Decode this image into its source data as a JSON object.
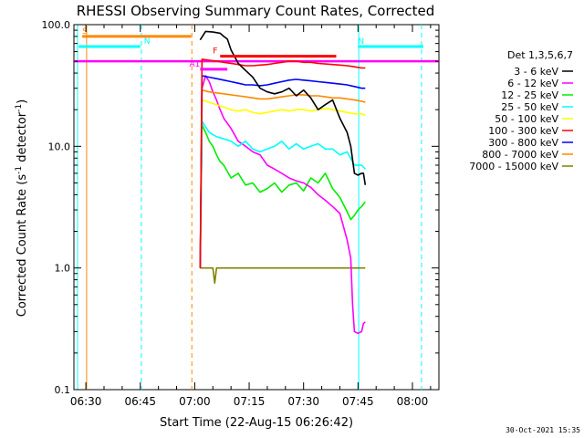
{
  "chart_data": {
    "type": "line",
    "title": "RHESSI Observing Summary Count Rates, Corrected",
    "xlabel": "Start Time (22-Aug-15 06:26:42)",
    "ylabel_main": "Corrected Count Rate (s",
    "ylabel_sup1": "-1",
    "ylabel_mid": " detector",
    "ylabel_sup2": "-1",
    "ylabel_end": ")",
    "yscale": "log",
    "ylim": [
      0.1,
      100
    ],
    "xlim": [
      "06:26",
      "08:07"
    ],
    "y_ticks": [
      {
        "value": 0.1,
        "label": "0.1"
      },
      {
        "value": 1,
        "label": "1.0"
      },
      {
        "value": 10,
        "label": "10.0"
      },
      {
        "value": 100,
        "label": "100.0"
      }
    ],
    "x_ticks": [
      {
        "minute": 390,
        "label": "06:30"
      },
      {
        "minute": 405,
        "label": "06:45"
      },
      {
        "minute": 420,
        "label": "07:00"
      },
      {
        "minute": 435,
        "label": "07:15"
      },
      {
        "minute": 450,
        "label": "07:30"
      },
      {
        "minute": 465,
        "label": "07:45"
      },
      {
        "minute": 480,
        "label": "08:00"
      }
    ],
    "legend_title": "Det 1,3,5,6,7",
    "legend_position": "right",
    "series": [
      {
        "name": "3 - 6 keV",
        "color": "#000000",
        "x": [
          421.5,
          423,
          425,
          427,
          428,
          429,
          430,
          432,
          434,
          436,
          438,
          440,
          442,
          444,
          446,
          448,
          450,
          452,
          454,
          456,
          458,
          460,
          462,
          463,
          464,
          465,
          466,
          466.5,
          467
        ],
        "y": [
          75,
          88,
          87,
          85,
          80,
          76,
          62,
          48,
          42,
          37,
          30,
          28,
          27,
          28,
          30,
          26,
          29,
          25,
          20,
          22,
          24,
          17,
          13,
          10,
          6,
          5.8,
          6,
          6,
          4.8
        ]
      },
      {
        "name": "6 - 12 keV",
        "color": "#ff00ff",
        "x": [
          421.5,
          422,
          423,
          424,
          425,
          426,
          427,
          428,
          430,
          432,
          434,
          436,
          438,
          440,
          442,
          444,
          446,
          448,
          450,
          452,
          454,
          456,
          458,
          460,
          462,
          463,
          463.5,
          464,
          465,
          466,
          466.5,
          467
        ],
        "y": [
          1.0,
          30,
          38,
          34,
          28,
          24,
          20,
          17,
          14,
          11,
          10,
          9,
          8.5,
          7,
          6.5,
          6,
          5.5,
          5.2,
          5,
          4.6,
          4,
          3.6,
          3.2,
          2.8,
          1.7,
          1.2,
          0.5,
          0.3,
          0.29,
          0.3,
          0.35,
          0.36
        ]
      },
      {
        "name": "12 - 25 keV",
        "color": "#00ee00",
        "x": [
          421.5,
          422,
          423,
          424,
          425,
          426,
          427,
          428,
          430,
          432,
          434,
          436,
          438,
          440,
          442,
          444,
          446,
          448,
          450,
          452,
          454,
          456,
          458,
          460,
          462,
          463,
          464,
          465,
          466,
          467
        ],
        "y": [
          1.0,
          15,
          13,
          11,
          10,
          8.5,
          7.5,
          7,
          5.5,
          6,
          4.8,
          5,
          4.2,
          4.5,
          5,
          4.2,
          4.8,
          5,
          4.3,
          5.5,
          5,
          6,
          4.5,
          3.8,
          2.9,
          2.5,
          2.7,
          3.0,
          3.2,
          3.5
        ]
      },
      {
        "name": "25 - 50 keV",
        "color": "#00ffff",
        "x": [
          421.5,
          422,
          424,
          426,
          428,
          430,
          432,
          434,
          436,
          438,
          440,
          442,
          444,
          446,
          448,
          450,
          452,
          454,
          456,
          458,
          460,
          462,
          464,
          466,
          467
        ],
        "y": [
          1.0,
          16,
          13,
          12,
          11.5,
          11,
          10,
          11,
          9.5,
          9,
          9.5,
          10,
          11,
          9.5,
          10.5,
          9.5,
          10,
          10.5,
          9.5,
          9.5,
          8.5,
          9,
          7,
          7,
          6.5
        ]
      },
      {
        "name": "50 - 100 keV",
        "color": "#ffff00",
        "x": [
          421.5,
          422,
          424,
          426,
          428,
          430,
          432,
          434,
          436,
          438,
          440,
          442,
          444,
          446,
          448,
          450,
          452,
          454,
          456,
          458,
          460,
          462,
          464,
          466,
          467
        ],
        "y": [
          1.0,
          24,
          23,
          22,
          21,
          20,
          19.5,
          20,
          19,
          18.5,
          19,
          19.5,
          20,
          19.5,
          20,
          20,
          19.5,
          20,
          20.5,
          20,
          19.5,
          19,
          18.5,
          18.5,
          18
        ]
      },
      {
        "name": "100 - 300 keV",
        "color": "#ff0000",
        "x": [
          421.5,
          422,
          424,
          426,
          428,
          430,
          432,
          434,
          436,
          438,
          440,
          442,
          444,
          446,
          448,
          450,
          452,
          454,
          456,
          458,
          460,
          462,
          464,
          466,
          467
        ],
        "y": [
          1.0,
          52,
          51,
          50,
          49,
          48,
          47,
          46,
          46,
          46.5,
          47,
          48,
          49,
          50,
          50,
          49,
          49,
          48,
          47.5,
          47,
          46.5,
          46,
          45,
          44,
          44
        ]
      },
      {
        "name": "300 - 800 keV",
        "color": "#0000ff",
        "x": [
          421.5,
          422,
          424,
          426,
          428,
          430,
          432,
          434,
          436,
          438,
          440,
          442,
          444,
          446,
          448,
          450,
          452,
          454,
          456,
          458,
          460,
          462,
          464,
          466,
          467
        ],
        "y": [
          1.0,
          38,
          37,
          36,
          35,
          34,
          33,
          32,
          32,
          31.5,
          32,
          33,
          34,
          35,
          35.5,
          35,
          34.5,
          34,
          33.5,
          33,
          32.5,
          32,
          31,
          30,
          30
        ]
      },
      {
        "name": "800 - 7000 keV",
        "color": "#ff8800",
        "x": [
          421.5,
          422,
          424,
          426,
          428,
          430,
          432,
          434,
          436,
          438,
          440,
          442,
          444,
          446,
          448,
          450,
          452,
          454,
          456,
          458,
          460,
          462,
          464,
          466,
          467
        ],
        "y": [
          1.0,
          29,
          28,
          27.5,
          27,
          26.5,
          26,
          25.5,
          25,
          24.5,
          24.5,
          25,
          25.5,
          26,
          26.5,
          26.5,
          26,
          26,
          25.5,
          25,
          25,
          24.5,
          24,
          23.5,
          23
        ]
      },
      {
        "name": "7000 - 15000 keV",
        "color": "#808000",
        "x": [
          421.5,
          422,
          424,
          425,
          425.5,
          426,
          428,
          430,
          432,
          434,
          436,
          438,
          440,
          442,
          444,
          446,
          448,
          450,
          452,
          454,
          456,
          458,
          460,
          462,
          464,
          466,
          467
        ],
        "y": [
          1.0,
          1.0,
          1.0,
          1.0,
          0.75,
          1.0,
          1.0,
          1.0,
          1.0,
          1.0,
          1.0,
          1.0,
          1.0,
          1.0,
          1.0,
          1.0,
          1.0,
          1.0,
          1.0,
          1.0,
          1.0,
          1.0,
          1.0,
          1.0,
          1.0,
          1.0,
          1.0
        ]
      }
    ],
    "orbit_markers": [
      {
        "label": "S",
        "color": "#ff8800",
        "x_start": 389,
        "x_end": 419,
        "y": 80,
        "label_x": 389
      },
      {
        "label": "N",
        "color": "#00ffff",
        "x_start": 388,
        "x_end": 405,
        "y": 66,
        "label_x": 406
      },
      {
        "label": "N",
        "color": "#00ffff",
        "x_start": 465,
        "x_end": 483,
        "y": 66,
        "label_x": 465
      },
      {
        "label": "A1",
        "color": "#ff00ff",
        "x_start": 421.5,
        "x_end": 429,
        "y": 43,
        "label_x": 418.5
      },
      {
        "label": "F",
        "color": "#ff0000",
        "x_start": 427,
        "x_end": 459,
        "y": 55,
        "label_x": 425
      }
    ],
    "reference_line": {
      "color": "#ff00ff",
      "y": 50
    },
    "vertical_lines": [
      {
        "x": 387.7,
        "color": "#00ffff",
        "style": "solid"
      },
      {
        "x": 390.2,
        "color": "#ff8800",
        "style": "solid"
      },
      {
        "x": 405.3,
        "color": "#00ffff",
        "style": "dashed"
      },
      {
        "x": 419.2,
        "color": "#ff8800",
        "style": "dashed"
      },
      {
        "x": 465.2,
        "color": "#00ffff",
        "style": "solid"
      },
      {
        "x": 482.5,
        "color": "#00ffff",
        "style": "dashed"
      }
    ]
  },
  "footer": {
    "timestamp": "30-Oct-2021 15:35"
  }
}
